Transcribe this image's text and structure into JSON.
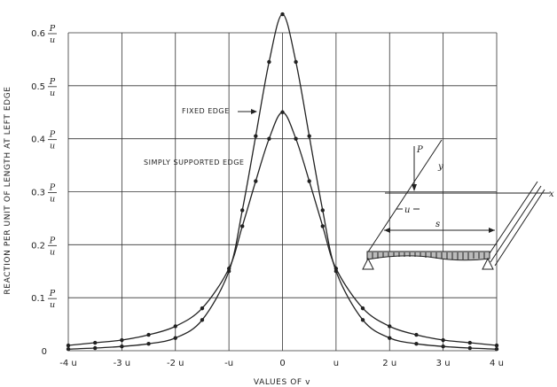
{
  "chart_data": {
    "type": "line",
    "xlabel": "VALUES OF v",
    "ylabel": "REACTION PER UNIT OF LENGTH AT LEFT EDGE",
    "xlim": [
      -4,
      4
    ],
    "ylim": [
      0,
      0.6
    ],
    "x_tick_labels": [
      "-4 u",
      "-3 u",
      "-2 u",
      "-u",
      "0",
      "u",
      "2 u",
      "3 u",
      "4 u"
    ],
    "y_ticks": [
      {
        "coef": "0",
        "num": "",
        "den": ""
      },
      {
        "coef": "0.1",
        "num": "P",
        "den": "u"
      },
      {
        "coef": "0.2",
        "num": "P",
        "den": "u"
      },
      {
        "coef": "0.3",
        "num": "P",
        "den": "u"
      },
      {
        "coef": "0.4",
        "num": "P",
        "den": "u"
      },
      {
        "coef": "0.5",
        "num": "P",
        "den": "u"
      },
      {
        "coef": "0.6",
        "num": "P",
        "den": "u"
      }
    ],
    "series": [
      {
        "name": "FIXED EDGE",
        "x": [
          -4,
          -3.5,
          -3,
          -2.5,
          -2,
          -1.5,
          -1,
          -0.75,
          -0.5,
          -0.25,
          0,
          0.25,
          0.5,
          0.75,
          1,
          1.5,
          2,
          2.5,
          3,
          3.5,
          4
        ],
        "y": [
          0.003,
          0.005,
          0.008,
          0.013,
          0.024,
          0.058,
          0.15,
          0.265,
          0.405,
          0.545,
          0.635,
          0.545,
          0.405,
          0.265,
          0.15,
          0.058,
          0.024,
          0.013,
          0.008,
          0.005,
          0.003
        ]
      },
      {
        "name": "SIMPLY SUPPORTED EDGE",
        "x": [
          -4,
          -3.5,
          -3,
          -2.5,
          -2,
          -1.5,
          -1,
          -0.75,
          -0.5,
          -0.25,
          0,
          0.25,
          0.5,
          0.75,
          1,
          1.5,
          2,
          2.5,
          3,
          3.5,
          4
        ],
        "y": [
          0.01,
          0.015,
          0.02,
          0.03,
          0.046,
          0.08,
          0.155,
          0.235,
          0.32,
          0.4,
          0.45,
          0.4,
          0.32,
          0.235,
          0.155,
          0.08,
          0.046,
          0.03,
          0.02,
          0.015,
          0.01
        ]
      }
    ],
    "annotations": [
      "FIXED EDGE",
      "SIMPLY SUPPORTED EDGE"
    ],
    "grid": true
  },
  "inset": {
    "load": "P",
    "axis_y": "y",
    "axis_x": "x",
    "offset": "u",
    "span": "s"
  }
}
